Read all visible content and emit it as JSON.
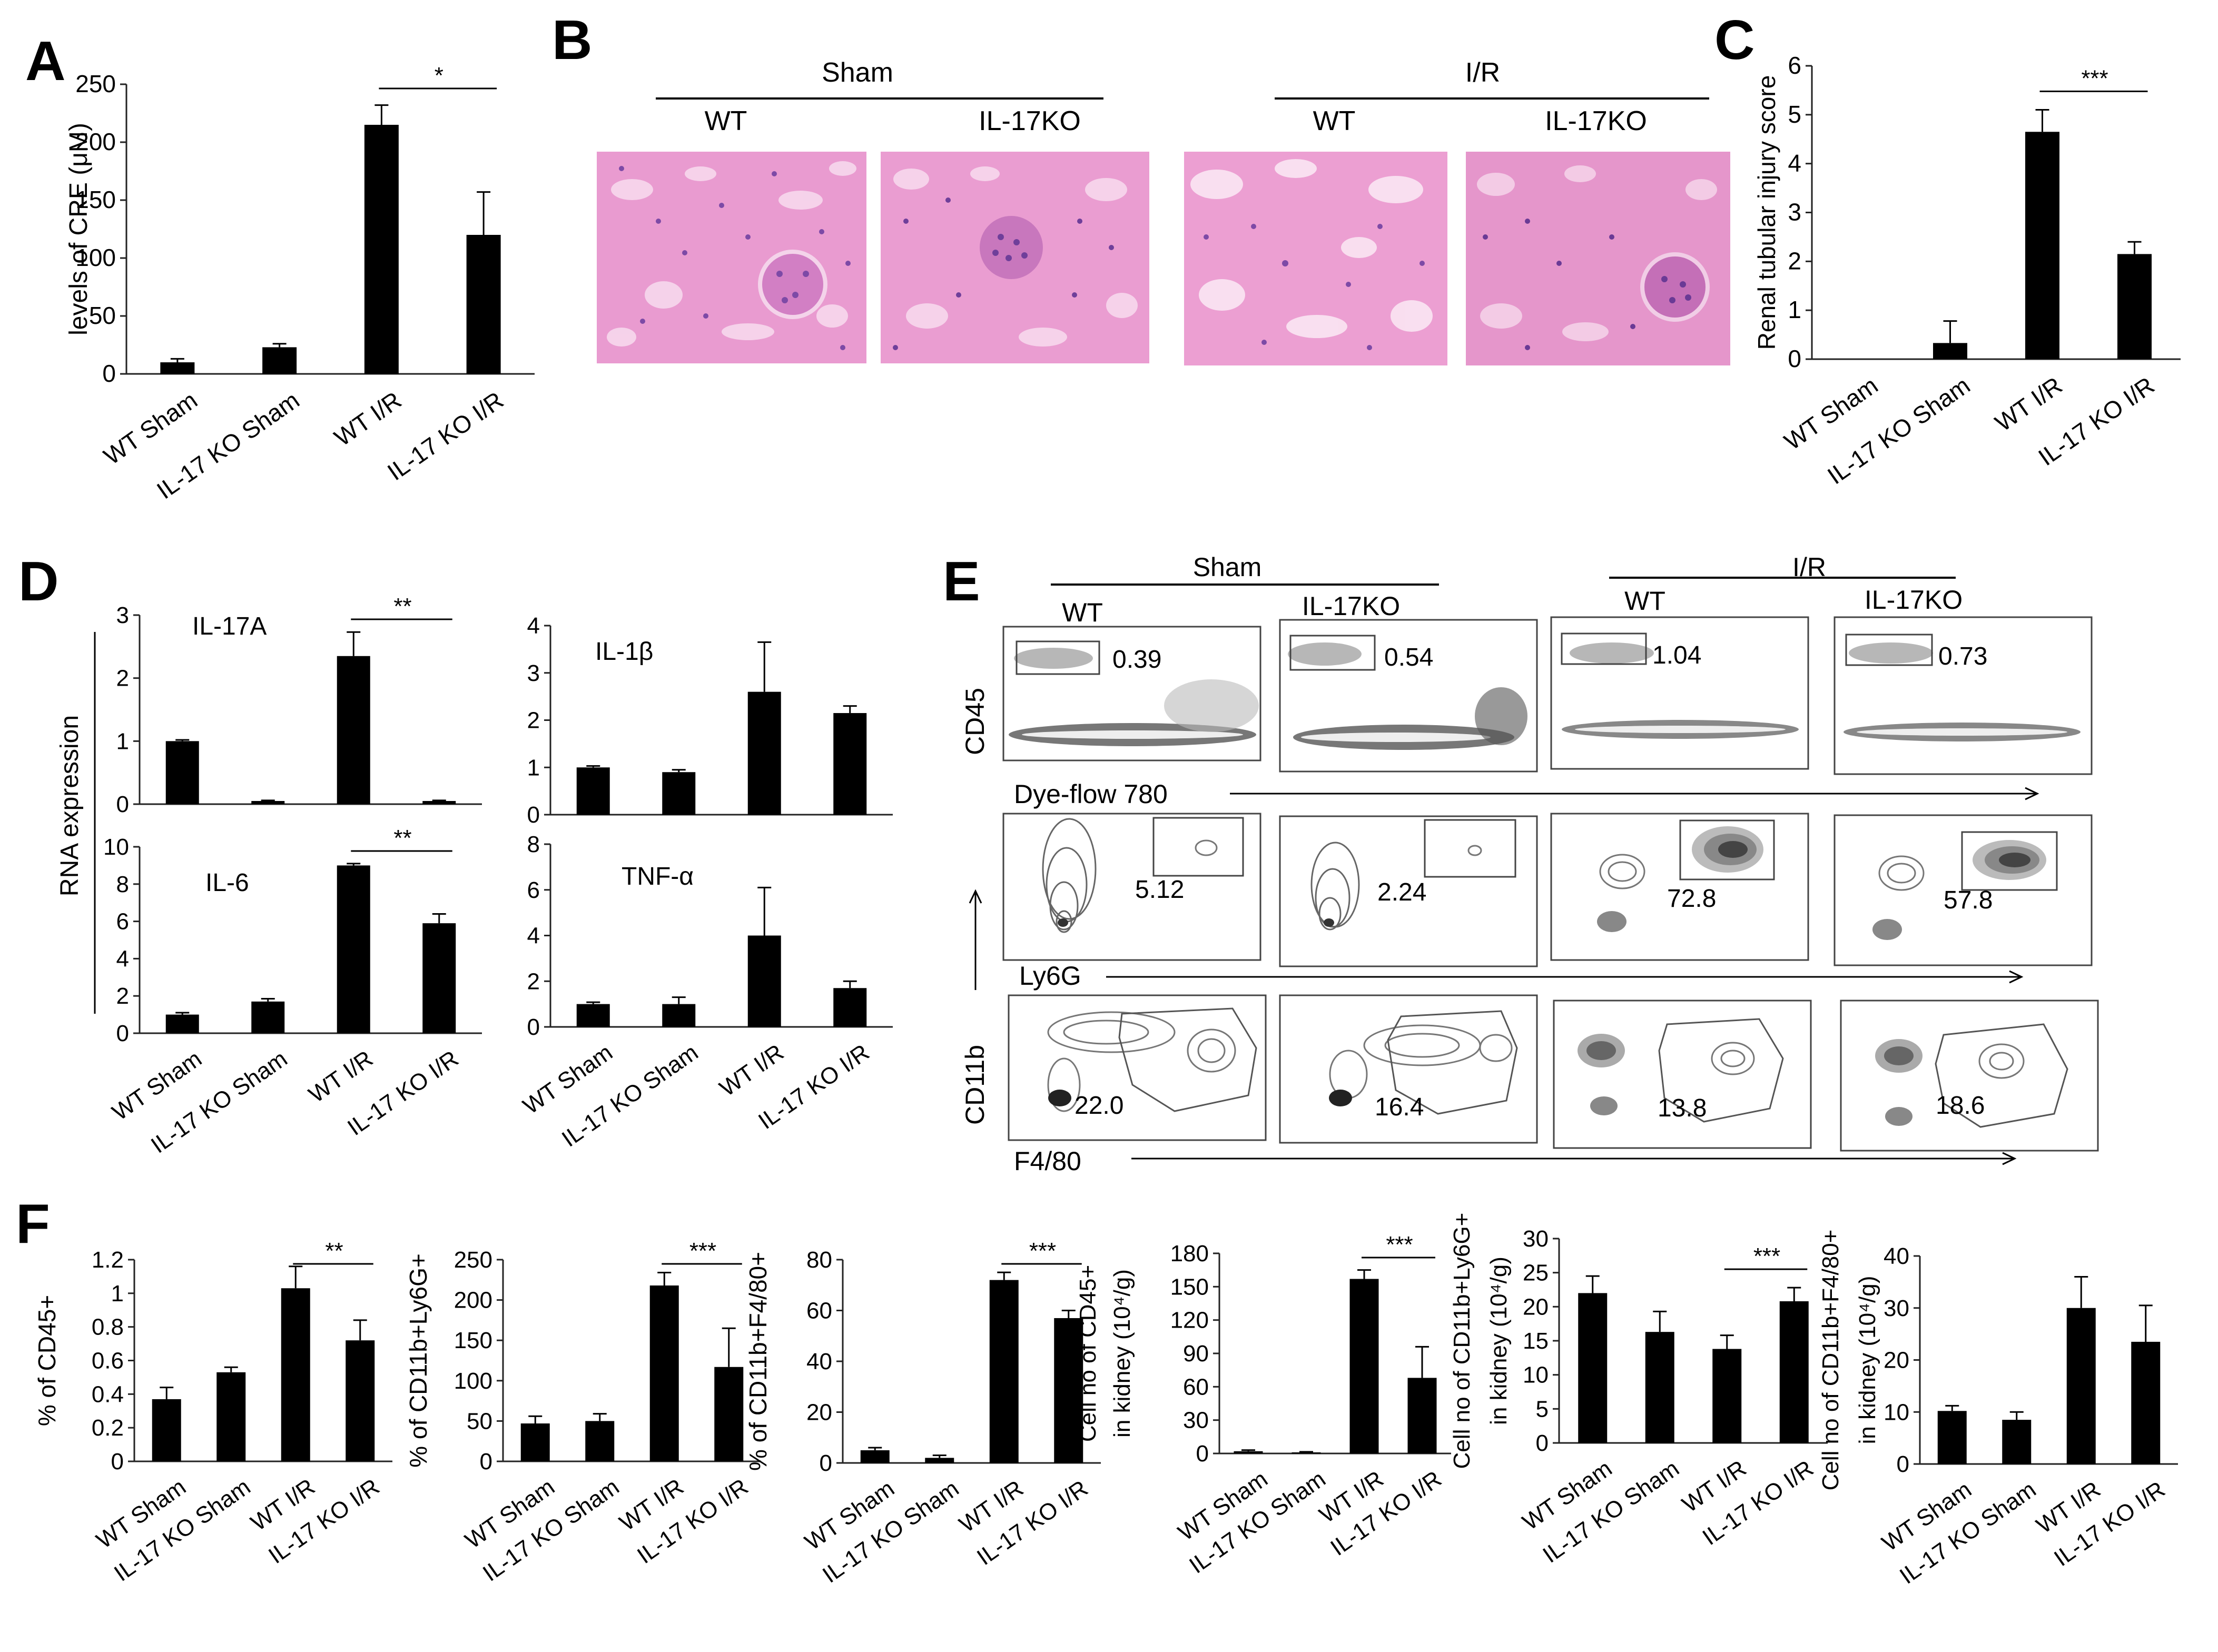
{
  "categories": [
    "WT Sham",
    "IL-17 KO Sham",
    "WT I/R",
    "IL-17 KO I/R"
  ],
  "panel_labels": {
    "A": "A",
    "B": "B",
    "C": "C",
    "D": "D",
    "E": "E",
    "F": "F"
  },
  "chart_data": [
    {
      "id": "A",
      "type": "bar",
      "ylabel": "levels of CRE (μM)",
      "ylim": [
        0,
        250
      ],
      "ticks": [
        0,
        50,
        100,
        150,
        200,
        250
      ],
      "values": [
        10,
        23,
        215,
        120
      ],
      "errors": [
        3,
        3,
        17,
        37
      ],
      "sig": {
        "label": "*",
        "between": [
          2,
          3
        ]
      }
    },
    {
      "id": "C",
      "type": "bar",
      "ylabel": "Renal tubular injury score",
      "ylim": [
        0,
        6
      ],
      "ticks": [
        0,
        1,
        2,
        3,
        4,
        5,
        6
      ],
      "values": [
        0,
        0.33,
        4.65,
        2.15
      ],
      "errors": [
        0,
        0.45,
        0.45,
        0.25
      ],
      "sig": {
        "label": "***",
        "between": [
          2,
          3
        ]
      }
    },
    {
      "id": "D1",
      "type": "bar",
      "title": "IL-17A",
      "ylim": [
        0,
        3
      ],
      "ticks": [
        0,
        1,
        2,
        3
      ],
      "values": [
        1.0,
        0.05,
        2.35,
        0.05
      ],
      "errors": [
        0.02,
        0.01,
        0.38,
        0.01
      ],
      "sig": {
        "label": "**",
        "between": [
          2,
          3
        ]
      }
    },
    {
      "id": "D2",
      "type": "bar",
      "title": "IL-1β",
      "ylim": [
        0,
        4
      ],
      "ticks": [
        0,
        1,
        2,
        3,
        4
      ],
      "values": [
        1.0,
        0.9,
        2.6,
        2.15
      ],
      "errors": [
        0.03,
        0.05,
        1.05,
        0.15
      ]
    },
    {
      "id": "D3",
      "type": "bar",
      "title": "IL-6",
      "ylim": [
        0,
        10
      ],
      "ticks": [
        0,
        2,
        4,
        6,
        8,
        10
      ],
      "values": [
        1.0,
        1.7,
        9.0,
        5.9
      ],
      "errors": [
        0.1,
        0.15,
        0.1,
        0.5
      ],
      "sig": {
        "label": "**",
        "between": [
          2,
          3
        ]
      }
    },
    {
      "id": "D4",
      "type": "bar",
      "title": "TNF-α",
      "ylim": [
        0,
        8
      ],
      "ticks": [
        0,
        2,
        4,
        6,
        8
      ],
      "values": [
        1.0,
        1.0,
        4.0,
        1.7
      ],
      "errors": [
        0.08,
        0.3,
        2.1,
        0.3
      ]
    },
    {
      "id": "F1",
      "type": "bar",
      "ylabel": "% of CD45+",
      "ylim": [
        0,
        1.2
      ],
      "ticks": [
        0,
        0.2,
        0.4,
        0.6,
        0.8,
        1,
        1.2
      ],
      "values": [
        0.37,
        0.53,
        1.03,
        0.72
      ],
      "errors": [
        0.07,
        0.03,
        0.13,
        0.12
      ],
      "sig": {
        "label": "**",
        "between": [
          2,
          3
        ]
      }
    },
    {
      "id": "F2",
      "type": "bar",
      "ylabel": "% of CD11b+Ly6G+",
      "ylim": [
        0,
        250
      ],
      "ticks": [
        0,
        50,
        100,
        150,
        200,
        250
      ],
      "values": [
        47,
        50,
        218,
        117
      ],
      "errors": [
        9,
        9,
        16,
        48
      ],
      "sig": {
        "label": "***",
        "between": [
          2,
          3
        ]
      }
    },
    {
      "id": "F3",
      "type": "bar",
      "ylabel": "% of CD11b+F4/80+",
      "ylim": [
        0,
        80
      ],
      "ticks": [
        0,
        20,
        40,
        60,
        80
      ],
      "values": [
        5,
        2,
        72,
        57
      ],
      "errors": [
        1,
        1,
        3,
        3
      ],
      "sig": {
        "label": "***",
        "between": [
          2,
          3
        ]
      }
    },
    {
      "id": "F4",
      "type": "bar",
      "ylabel": "Cell no of CD45+",
      "ylabel2": "in kidney (10⁴/g)",
      "ylim": [
        0,
        180
      ],
      "ticks": [
        0,
        30,
        60,
        90,
        120,
        150,
        180
      ],
      "values": [
        2,
        1,
        157,
        68
      ],
      "errors": [
        1,
        0.5,
        8,
        28
      ],
      "sig": {
        "label": "***",
        "between": [
          2,
          3
        ]
      }
    },
    {
      "id": "F5",
      "type": "bar",
      "ylabel": "Cell no of CD11b+Ly6G+",
      "ylabel2": "in kidney (10⁴/g)",
      "ylim": [
        0,
        30
      ],
      "ticks": [
        0,
        5,
        10,
        15,
        20,
        25,
        30
      ],
      "values": [
        22,
        16.3,
        13.8,
        20.8
      ],
      "errors": [
        2.5,
        3,
        2,
        2
      ],
      "sig": {
        "label": "***",
        "between": [
          2,
          3
        ]
      }
    },
    {
      "id": "F6",
      "type": "bar",
      "ylabel": "Cell no of CD11b+F4/80+",
      "ylabel2": "in kidney (10⁴/g)",
      "ylim": [
        0,
        40
      ],
      "ticks": [
        0,
        10,
        20,
        30,
        40
      ],
      "values": [
        10.2,
        8.5,
        30,
        23.5
      ],
      "errors": [
        1,
        1.5,
        6,
        7
      ]
    }
  ],
  "panel_d": {
    "ylabel": "RNA expression"
  },
  "panel_b": {
    "groups": [
      {
        "title": "Sham",
        "columns": [
          "WT",
          "IL-17KO"
        ]
      },
      {
        "title": "I/R",
        "columns": [
          "WT",
          "IL-17KO"
        ]
      }
    ]
  },
  "panel_e": {
    "groups": [
      {
        "title": "Sham",
        "columns": [
          "WT",
          "IL-17KO"
        ]
      },
      {
        "title": "I/R",
        "columns": [
          "WT",
          "IL-17KO"
        ]
      }
    ],
    "row1": {
      "ylabel": "CD45",
      "xlabel": "Dye-flow 780",
      "values": [
        "0.39",
        "0.54",
        "1.04",
        "0.73"
      ]
    },
    "row2": {
      "xlabel": "Ly6G",
      "values": [
        "5.12",
        "2.24",
        "72.8",
        "57.8"
      ]
    },
    "row3": {
      "xlabel": "F4/80",
      "values": [
        "22.0",
        "16.4",
        "13.8",
        "18.6"
      ]
    },
    "shared_ylabel": "CD11b"
  }
}
